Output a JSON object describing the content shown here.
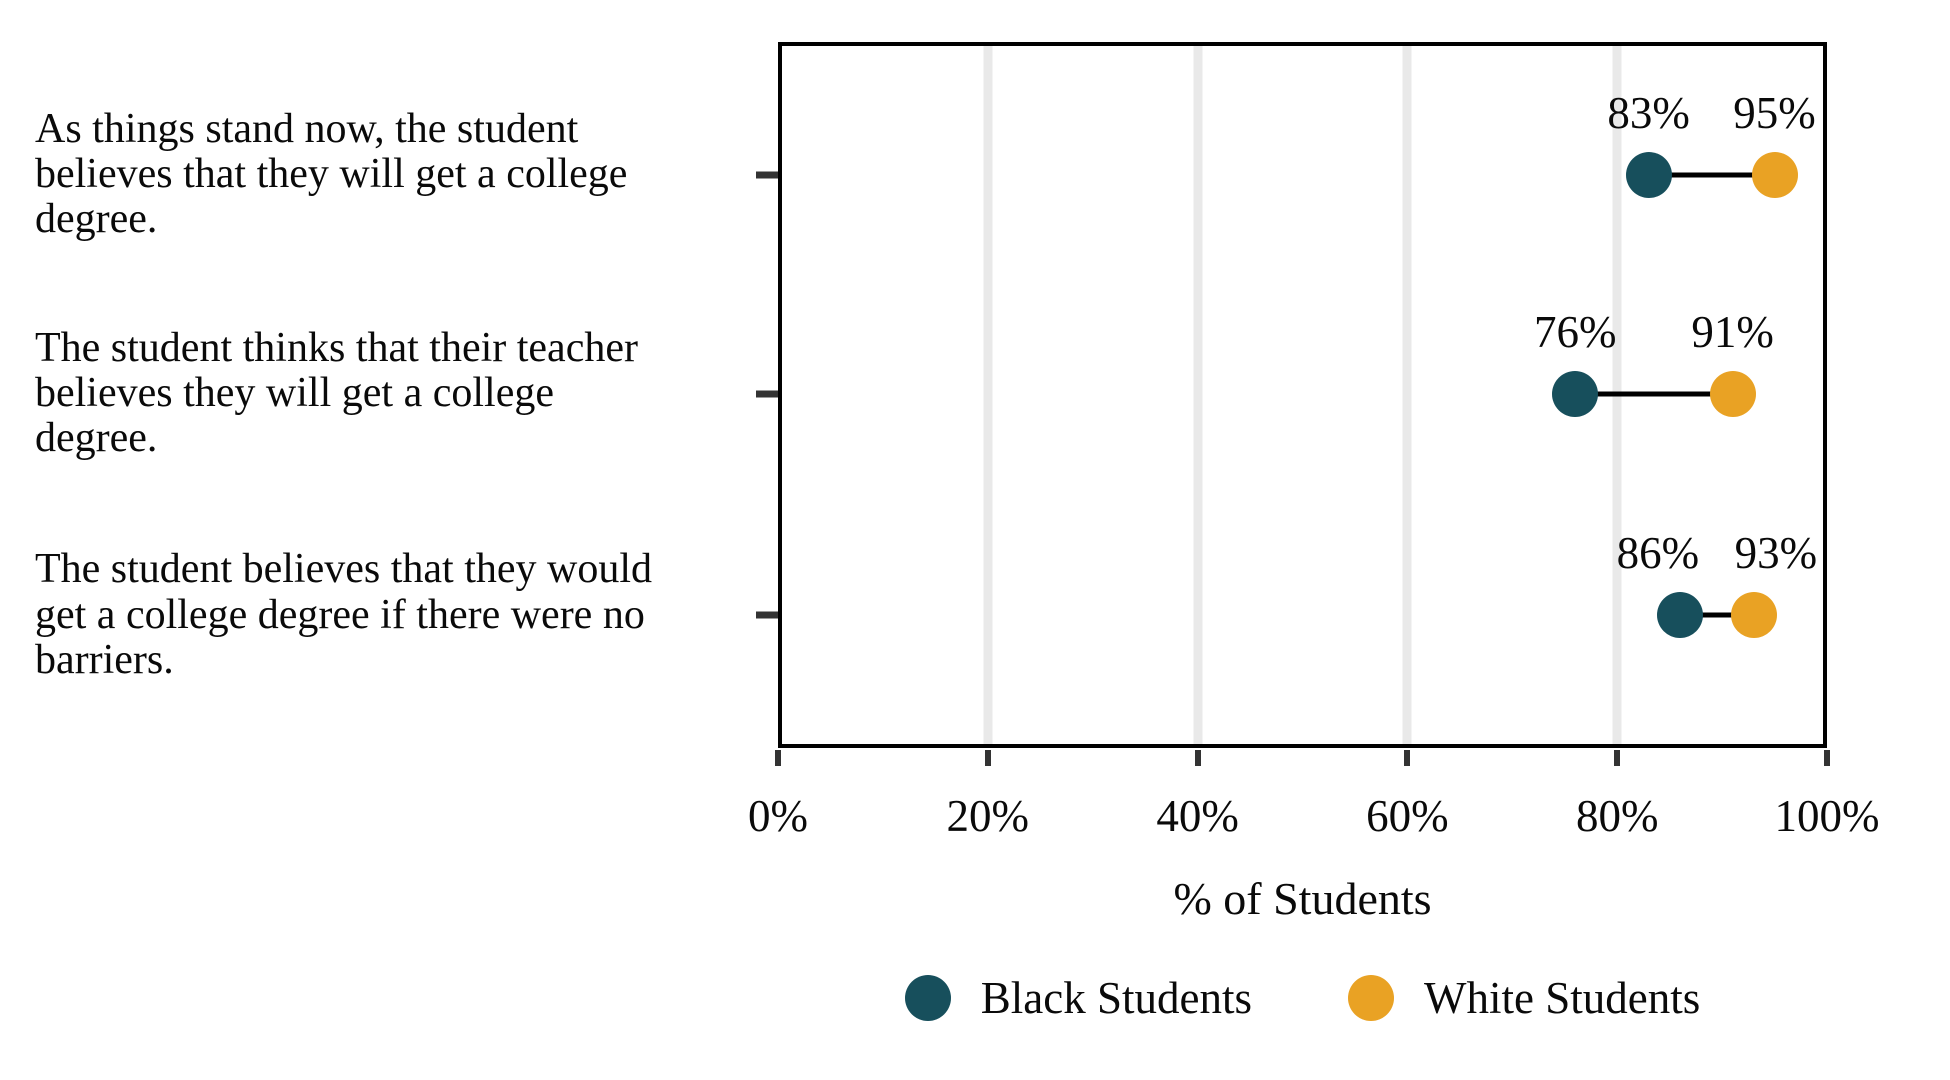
{
  "chart_data": {
    "type": "dumbbell",
    "categories": [
      "As things stand now, the student\nbelieves that they will get a college\ndegree.",
      "The student thinks that their teacher\nbelieves they will get a college\ndegree.",
      "The student believes that they would\nget a college degree if there were no\nbarriers."
    ],
    "series": [
      {
        "name": "Black Students",
        "color": "#174F5C",
        "values": [
          83,
          76,
          86
        ]
      },
      {
        "name": "White Students",
        "color": "#E9A224",
        "values": [
          95,
          91,
          93
        ]
      }
    ],
    "value_suffix": "%",
    "xlabel": "% of Students",
    "x_ticks": [
      "0%",
      "20%",
      "40%",
      "60%",
      "80%",
      "100%"
    ],
    "xlim": [
      0,
      100
    ],
    "gridlines_at": [
      20,
      40,
      60,
      80
    ],
    "grid_on": true,
    "legend_position": "bottom"
  },
  "colors": {
    "gridline": "#e9e9e9",
    "connector": "#000000",
    "frame": "#000000",
    "text": "#0a0a0a"
  }
}
